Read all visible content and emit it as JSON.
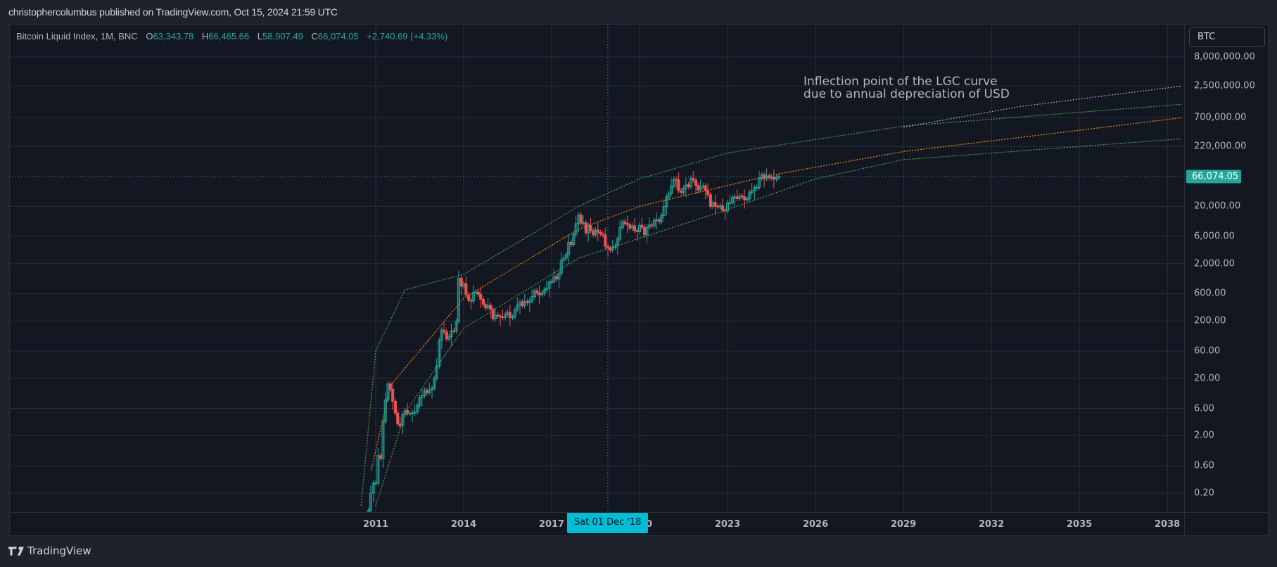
{
  "header": {
    "published_text": "christophercolumbus published on TradingView.com, Oct 15, 2024 21:59 UTC"
  },
  "legend": {
    "symbol": "Bitcoin Liquid Index, 1M, BNC",
    "open_label": "O",
    "open": "63,343.78",
    "high_label": "H",
    "high": "66,465.66",
    "low_label": "L",
    "low": "58,907.49",
    "close_label": "C",
    "close": "66,074.05",
    "change": "+2,740.69 (+4.33%)"
  },
  "symbol_box": {
    "label": "BTC"
  },
  "last_price": {
    "label": "66,074.05",
    "value": 66074.05
  },
  "crosshair": {
    "date_label": "Sat 01 Dec '18",
    "year": 2018.917
  },
  "annotation": {
    "text": "Inflection point of the LGC curve\ndue to annual depreciation of USD"
  },
  "footer": {
    "brand": "TradingView"
  },
  "colors": {
    "background": "#131722",
    "frame": "#1e222d",
    "grid": "#2a2e39",
    "up": "#26a69a",
    "down": "#ef5350",
    "upper_band": "#4caf50",
    "lower_band": "#4caf50",
    "middle_curve": "#ff9800",
    "extension_curve": "#d1d4dc",
    "crosshair": "#00bcd4",
    "text": "#b2b5be"
  },
  "chart_data": {
    "type": "candlestick",
    "title": "Bitcoin Liquid Index, 1M, BNC",
    "xlabel": "",
    "ylabel": "BTC",
    "y_scale": "log",
    "ylim": [
      0.12,
      10000000
    ],
    "xlim": [
      2007.9,
      2039.2
    ],
    "grid": true,
    "x_ticks": [
      "2011",
      "2014",
      "2017",
      "2020",
      "2023",
      "2026",
      "2029",
      "2032",
      "2035",
      "2038"
    ],
    "x_tick_years": [
      2011,
      2014,
      2017,
      2020,
      2023,
      2026,
      2029,
      2032,
      2035,
      2038
    ],
    "y_ticks": [
      "8,000,000.00",
      "2,500,000.00",
      "700,000.00",
      "220,000.00",
      "20,000.00",
      "6,000.00",
      "2,000.00",
      "600.00",
      "200.00",
      "60.00",
      "20.00",
      "6.00",
      "2.00",
      "0.60",
      "0.20"
    ],
    "y_tick_values": [
      8000000,
      2500000,
      700000,
      220000,
      20000,
      6000,
      2000,
      600,
      200,
      60,
      20,
      6,
      2,
      0.6,
      0.2
    ],
    "last_close": 66074.05,
    "series_ohlc_note": "approximate monthly closes read from chart (year, close)",
    "series": [
      {
        "name": "BLX monthly close (approx.)",
        "points": [
          [
            2010.58,
            0.07
          ],
          [
            2010.67,
            0.06
          ],
          [
            2010.75,
            0.1
          ],
          [
            2010.83,
            0.2
          ],
          [
            2010.92,
            0.3
          ],
          [
            2011.0,
            0.3
          ],
          [
            2011.08,
            0.9
          ],
          [
            2011.17,
            0.8
          ],
          [
            2011.25,
            3.5
          ],
          [
            2011.33,
            8.5
          ],
          [
            2011.42,
            16
          ],
          [
            2011.5,
            13
          ],
          [
            2011.58,
            8
          ],
          [
            2011.67,
            5
          ],
          [
            2011.75,
            3.2
          ],
          [
            2011.83,
            3
          ],
          [
            2011.92,
            4.7
          ],
          [
            2012.0,
            5.5
          ],
          [
            2012.08,
            4.9
          ],
          [
            2012.17,
            4.9
          ],
          [
            2012.25,
            5
          ],
          [
            2012.33,
            5.2
          ],
          [
            2012.42,
            6.7
          ],
          [
            2012.5,
            9.3
          ],
          [
            2012.58,
            10
          ],
          [
            2012.67,
            12.4
          ],
          [
            2012.75,
            11.2
          ],
          [
            2012.83,
            12.6
          ],
          [
            2012.92,
            13.5
          ],
          [
            2013.0,
            20
          ],
          [
            2013.08,
            33
          ],
          [
            2013.17,
            93
          ],
          [
            2013.25,
            139
          ],
          [
            2013.33,
            129
          ],
          [
            2013.42,
            97
          ],
          [
            2013.5,
            106
          ],
          [
            2013.58,
            135
          ],
          [
            2013.67,
            133
          ],
          [
            2013.75,
            198
          ],
          [
            2013.83,
            1120
          ],
          [
            2013.92,
            805
          ],
          [
            2014.0,
            900
          ],
          [
            2014.08,
            570
          ],
          [
            2014.17,
            460
          ],
          [
            2014.25,
            445
          ],
          [
            2014.33,
            630
          ],
          [
            2014.42,
            640
          ],
          [
            2014.5,
            585
          ],
          [
            2014.58,
            480
          ],
          [
            2014.67,
            385
          ],
          [
            2014.75,
            338
          ],
          [
            2014.83,
            378
          ],
          [
            2014.92,
            320
          ],
          [
            2015.0,
            218
          ],
          [
            2015.08,
            254
          ],
          [
            2015.17,
            244
          ],
          [
            2015.25,
            236
          ],
          [
            2015.33,
            230
          ],
          [
            2015.42,
            263
          ],
          [
            2015.5,
            284
          ],
          [
            2015.58,
            230
          ],
          [
            2015.67,
            236
          ],
          [
            2015.75,
            314
          ],
          [
            2015.83,
            378
          ],
          [
            2015.92,
            430
          ],
          [
            2016.0,
            369
          ],
          [
            2016.08,
            437
          ],
          [
            2016.17,
            416
          ],
          [
            2016.25,
            448
          ],
          [
            2016.33,
            531
          ],
          [
            2016.42,
            673
          ],
          [
            2016.5,
            624
          ],
          [
            2016.58,
            575
          ],
          [
            2016.67,
            609
          ],
          [
            2016.75,
            700
          ],
          [
            2016.83,
            742
          ],
          [
            2016.92,
            963
          ],
          [
            2017.0,
            970
          ],
          [
            2017.08,
            1190
          ],
          [
            2017.17,
            1080
          ],
          [
            2017.25,
            1350
          ],
          [
            2017.33,
            2300
          ],
          [
            2017.42,
            2500
          ],
          [
            2017.5,
            2880
          ],
          [
            2017.58,
            4700
          ],
          [
            2017.67,
            4340
          ],
          [
            2017.75,
            6450
          ],
          [
            2017.83,
            10000
          ],
          [
            2017.92,
            14150
          ],
          [
            2018.0,
            10200
          ],
          [
            2018.08,
            10300
          ],
          [
            2018.17,
            6900
          ],
          [
            2018.25,
            9250
          ],
          [
            2018.33,
            7500
          ],
          [
            2018.42,
            6400
          ],
          [
            2018.5,
            7730
          ],
          [
            2018.58,
            7000
          ],
          [
            2018.67,
            6600
          ],
          [
            2018.75,
            6300
          ],
          [
            2018.83,
            4000
          ],
          [
            2018.92,
            3740
          ],
          [
            2019.0,
            3460
          ],
          [
            2019.08,
            3850
          ],
          [
            2019.17,
            4100
          ],
          [
            2019.25,
            5350
          ],
          [
            2019.33,
            8570
          ],
          [
            2019.42,
            10800
          ],
          [
            2019.5,
            10100
          ],
          [
            2019.58,
            9600
          ],
          [
            2019.67,
            8300
          ],
          [
            2019.75,
            9150
          ],
          [
            2019.83,
            7550
          ],
          [
            2019.92,
            7200
          ],
          [
            2020.0,
            9350
          ],
          [
            2020.08,
            8600
          ],
          [
            2020.17,
            6430
          ],
          [
            2020.25,
            8630
          ],
          [
            2020.33,
            9450
          ],
          [
            2020.42,
            9140
          ],
          [
            2020.5,
            11350
          ],
          [
            2020.58,
            11650
          ],
          [
            2020.67,
            10780
          ],
          [
            2020.75,
            13800
          ],
          [
            2020.83,
            19700
          ],
          [
            2020.92,
            28990
          ],
          [
            2021.0,
            33110
          ],
          [
            2021.08,
            45240
          ],
          [
            2021.17,
            58800
          ],
          [
            2021.25,
            57800
          ],
          [
            2021.33,
            37300
          ],
          [
            2021.42,
            35040
          ],
          [
            2021.5,
            41460
          ],
          [
            2021.58,
            47100
          ],
          [
            2021.67,
            43800
          ],
          [
            2021.75,
            61300
          ],
          [
            2021.83,
            57000
          ],
          [
            2021.92,
            46300
          ],
          [
            2022.0,
            38500
          ],
          [
            2022.08,
            43200
          ],
          [
            2022.17,
            45500
          ],
          [
            2022.25,
            37700
          ],
          [
            2022.33,
            31800
          ],
          [
            2022.42,
            19900
          ],
          [
            2022.5,
            23300
          ],
          [
            2022.58,
            20050
          ],
          [
            2022.67,
            19400
          ],
          [
            2022.75,
            20500
          ],
          [
            2022.83,
            17150
          ],
          [
            2022.92,
            16550
          ],
          [
            2023.0,
            23100
          ],
          [
            2023.08,
            23150
          ],
          [
            2023.17,
            28450
          ],
          [
            2023.25,
            29250
          ],
          [
            2023.33,
            27200
          ],
          [
            2023.42,
            30450
          ],
          [
            2023.5,
            29200
          ],
          [
            2023.58,
            25950
          ],
          [
            2023.67,
            26950
          ],
          [
            2023.75,
            34650
          ],
          [
            2023.83,
            37700
          ],
          [
            2023.92,
            42250
          ],
          [
            2024.0,
            42550
          ],
          [
            2024.08,
            61200
          ],
          [
            2024.17,
            71300
          ],
          [
            2024.25,
            60650
          ],
          [
            2024.33,
            67500
          ],
          [
            2024.42,
            62700
          ],
          [
            2024.5,
            64600
          ],
          [
            2024.58,
            58970
          ],
          [
            2024.67,
            63330
          ],
          [
            2024.75,
            66074
          ]
        ]
      }
    ],
    "overlays": [
      {
        "name": "Upper band (green dotted)",
        "style": "dotted",
        "color": "#4caf50",
        "approx_points": [
          [
            2010.5,
            0.12
          ],
          [
            2011.0,
            60
          ],
          [
            2012.0,
            700
          ],
          [
            2014.0,
            1300
          ],
          [
            2017.92,
            20000
          ],
          [
            2020.0,
            60000
          ],
          [
            2023.0,
            170000
          ],
          [
            2029.0,
            500000
          ],
          [
            2038.5,
            1200000
          ]
        ]
      },
      {
        "name": "LGC middle curve (orange dotted)",
        "style": "dotted",
        "color": "#ff9800",
        "approx_points": [
          [
            2010.85,
            0.5
          ],
          [
            2011.5,
            15
          ],
          [
            2014.0,
            500
          ],
          [
            2017.92,
            8000
          ],
          [
            2020.0,
            20000
          ],
          [
            2024.5,
            70000
          ],
          [
            2029.0,
            180000
          ],
          [
            2038.5,
            700000
          ]
        ]
      },
      {
        "name": "Lower band (green dotted)",
        "style": "dotted",
        "color": "#4caf50",
        "approx_points": [
          [
            2011.0,
            0.12
          ],
          [
            2012.0,
            5
          ],
          [
            2014.0,
            150
          ],
          [
            2017.92,
            2500
          ],
          [
            2022.92,
            17000
          ],
          [
            2026.0,
            60000
          ],
          [
            2029.0,
            130000
          ],
          [
            2038.5,
            300000
          ]
        ]
      },
      {
        "name": "Extension (white dotted)",
        "style": "dotted",
        "color": "#d1d4dc",
        "approx_points": [
          [
            2029.0,
            480000
          ],
          [
            2033.0,
            1100000
          ],
          [
            2038.5,
            2500000
          ]
        ]
      }
    ]
  }
}
